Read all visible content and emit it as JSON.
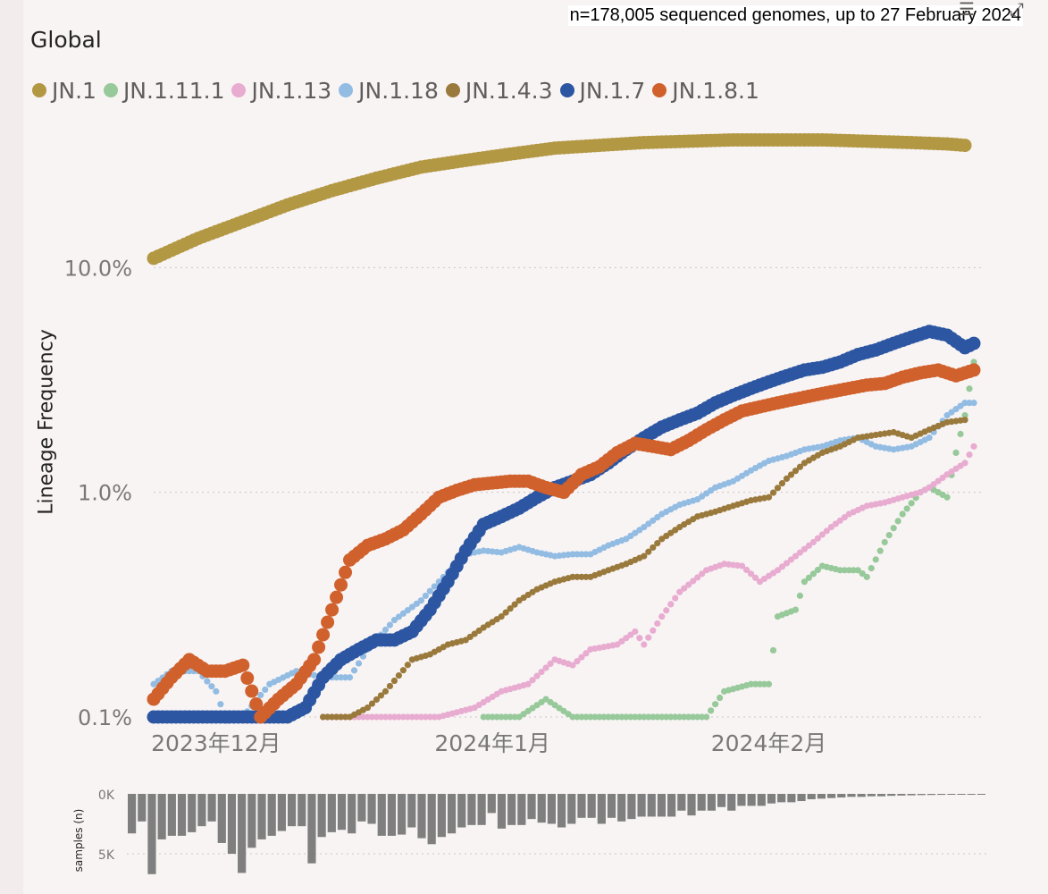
{
  "subtitle": "n=178,005 sequenced genomes, up to 27 February 2024",
  "title": "Global",
  "icons": [
    "filter-icon",
    "expand-icon"
  ],
  "chart_data": [
    {
      "type": "scatter",
      "title": "Global",
      "ylabel": "Lineage Frequency",
      "yscale": "log",
      "ylim": [
        0.1,
        40
      ],
      "yticks": [
        "10.0%",
        "1.0%",
        "0.1%"
      ],
      "ytick_values": [
        10,
        1,
        0.1
      ],
      "xticks": [
        "2023年12月",
        "2024年1月",
        "2024年2月"
      ],
      "xtick_days": [
        0,
        31,
        62
      ],
      "xlim_days": [
        -7,
        85
      ],
      "grid": true,
      "legend_position": "top-left",
      "series": [
        {
          "name": "JN.1",
          "color": "#b39844",
          "size": "large",
          "points": [
            [
              -7,
              11
            ],
            [
              -2,
              13.5
            ],
            [
              3,
              16
            ],
            [
              8,
              19
            ],
            [
              13,
              22
            ],
            [
              18,
              25
            ],
            [
              23,
              28
            ],
            [
              28,
              30
            ],
            [
              33,
              32
            ],
            [
              38,
              34
            ],
            [
              43,
              35
            ],
            [
              48,
              36
            ],
            [
              53,
              36.5
            ],
            [
              58,
              37
            ],
            [
              63,
              37
            ],
            [
              68,
              37
            ],
            [
              73,
              36.5
            ],
            [
              78,
              36
            ],
            [
              82,
              35.5
            ],
            [
              84,
              35
            ]
          ]
        },
        {
          "name": "JN.1.11.1",
          "color": "#97c99a",
          "size": "small",
          "points": [
            [
              30,
              0.1
            ],
            [
              34,
              0.1
            ],
            [
              37,
              0.12
            ],
            [
              40,
              0.1
            ],
            [
              45,
              0.1
            ],
            [
              50,
              0.1
            ],
            [
              55,
              0.1
            ],
            [
              57,
              0.13
            ],
            [
              60,
              0.14
            ],
            [
              62,
              0.14
            ],
            [
              63,
              0.28
            ],
            [
              65,
              0.3
            ],
            [
              66,
              0.4
            ],
            [
              68,
              0.47
            ],
            [
              70,
              0.45
            ],
            [
              72,
              0.45
            ],
            [
              73,
              0.42
            ],
            [
              75,
              0.6
            ],
            [
              77,
              0.8
            ],
            [
              79,
              1.0
            ],
            [
              80,
              1.05
            ],
            [
              81,
              1.0
            ],
            [
              82,
              0.95
            ],
            [
              83,
              1.5
            ],
            [
              84,
              2.2
            ],
            [
              85,
              3.8
            ]
          ]
        },
        {
          "name": "JN.1.13",
          "color": "#e8acd0",
          "size": "small",
          "points": [
            [
              12,
              0.1
            ],
            [
              20,
              0.1
            ],
            [
              25,
              0.1
            ],
            [
              29,
              0.11
            ],
            [
              32,
              0.13
            ],
            [
              35,
              0.14
            ],
            [
              38,
              0.18
            ],
            [
              40,
              0.17
            ],
            [
              42,
              0.2
            ],
            [
              45,
              0.21
            ],
            [
              47,
              0.24
            ],
            [
              48,
              0.21
            ],
            [
              50,
              0.28
            ],
            [
              52,
              0.36
            ],
            [
              55,
              0.45
            ],
            [
              57,
              0.48
            ],
            [
              59,
              0.47
            ],
            [
              61,
              0.4
            ],
            [
              63,
              0.45
            ],
            [
              65,
              0.52
            ],
            [
              67,
              0.6
            ],
            [
              69,
              0.7
            ],
            [
              71,
              0.8
            ],
            [
              73,
              0.87
            ],
            [
              75,
              0.9
            ],
            [
              77,
              0.95
            ],
            [
              79,
              1.0
            ],
            [
              80,
              1.05
            ],
            [
              82,
              1.2
            ],
            [
              84,
              1.35
            ],
            [
              85,
              1.6
            ]
          ]
        },
        {
          "name": "JN.1.18",
          "color": "#93bce3",
          "size": "small",
          "points": [
            [
              -7,
              0.14
            ],
            [
              -5,
              0.16
            ],
            [
              -2,
              0.16
            ],
            [
              0,
              0.13
            ],
            [
              1,
              0.1
            ],
            [
              3,
              0.1
            ],
            [
              6,
              0.14
            ],
            [
              9,
              0.16
            ],
            [
              12,
              0.15
            ],
            [
              15,
              0.15
            ],
            [
              17,
              0.2
            ],
            [
              20,
              0.27
            ],
            [
              23,
              0.33
            ],
            [
              26,
              0.44
            ],
            [
              28,
              0.53
            ],
            [
              30,
              0.55
            ],
            [
              32,
              0.54
            ],
            [
              34,
              0.57
            ],
            [
              36,
              0.54
            ],
            [
              38,
              0.52
            ],
            [
              40,
              0.53
            ],
            [
              42,
              0.53
            ],
            [
              44,
              0.58
            ],
            [
              46,
              0.62
            ],
            [
              48,
              0.7
            ],
            [
              50,
              0.8
            ],
            [
              52,
              0.88
            ],
            [
              54,
              0.93
            ],
            [
              56,
              1.05
            ],
            [
              58,
              1.12
            ],
            [
              60,
              1.25
            ],
            [
              62,
              1.38
            ],
            [
              64,
              1.45
            ],
            [
              66,
              1.55
            ],
            [
              68,
              1.6
            ],
            [
              70,
              1.7
            ],
            [
              72,
              1.75
            ],
            [
              74,
              1.6
            ],
            [
              76,
              1.55
            ],
            [
              78,
              1.6
            ],
            [
              80,
              1.75
            ],
            [
              82,
              2.2
            ],
            [
              84,
              2.5
            ],
            [
              85,
              2.5
            ]
          ]
        },
        {
          "name": "JN.1.4.3",
          "color": "#9a7a3c",
          "size": "small",
          "points": [
            [
              12,
              0.1
            ],
            [
              15,
              0.1
            ],
            [
              17,
              0.11
            ],
            [
              19,
              0.13
            ],
            [
              22,
              0.18
            ],
            [
              24,
              0.19
            ],
            [
              26,
              0.21
            ],
            [
              28,
              0.22
            ],
            [
              30,
              0.25
            ],
            [
              32,
              0.28
            ],
            [
              34,
              0.33
            ],
            [
              36,
              0.37
            ],
            [
              38,
              0.4
            ],
            [
              40,
              0.42
            ],
            [
              42,
              0.42
            ],
            [
              44,
              0.45
            ],
            [
              46,
              0.48
            ],
            [
              48,
              0.52
            ],
            [
              50,
              0.62
            ],
            [
              52,
              0.7
            ],
            [
              54,
              0.78
            ],
            [
              56,
              0.82
            ],
            [
              58,
              0.87
            ],
            [
              60,
              0.92
            ],
            [
              62,
              0.95
            ],
            [
              64,
              1.15
            ],
            [
              66,
              1.35
            ],
            [
              68,
              1.5
            ],
            [
              70,
              1.6
            ],
            [
              72,
              1.75
            ],
            [
              74,
              1.8
            ],
            [
              76,
              1.85
            ],
            [
              78,
              1.75
            ],
            [
              80,
              1.9
            ],
            [
              82,
              2.05
            ],
            [
              84,
              2.1
            ]
          ]
        },
        {
          "name": "JN.1.7",
          "color": "#2c56a2",
          "size": "large",
          "points": [
            [
              -7,
              0.1
            ],
            [
              0,
              0.1
            ],
            [
              5,
              0.1
            ],
            [
              8,
              0.1
            ],
            [
              10,
              0.11
            ],
            [
              12,
              0.15
            ],
            [
              14,
              0.18
            ],
            [
              16,
              0.2
            ],
            [
              18,
              0.22
            ],
            [
              20,
              0.22
            ],
            [
              22,
              0.24
            ],
            [
              24,
              0.3
            ],
            [
              26,
              0.4
            ],
            [
              28,
              0.55
            ],
            [
              30,
              0.72
            ],
            [
              32,
              0.78
            ],
            [
              34,
              0.85
            ],
            [
              36,
              0.95
            ],
            [
              38,
              1.05
            ],
            [
              40,
              1.12
            ],
            [
              42,
              1.2
            ],
            [
              44,
              1.35
            ],
            [
              46,
              1.55
            ],
            [
              48,
              1.75
            ],
            [
              50,
              1.95
            ],
            [
              52,
              2.1
            ],
            [
              54,
              2.25
            ],
            [
              56,
              2.5
            ],
            [
              58,
              2.7
            ],
            [
              60,
              2.9
            ],
            [
              62,
              3.1
            ],
            [
              64,
              3.3
            ],
            [
              66,
              3.5
            ],
            [
              68,
              3.6
            ],
            [
              70,
              3.8
            ],
            [
              72,
              4.1
            ],
            [
              74,
              4.3
            ],
            [
              76,
              4.6
            ],
            [
              78,
              4.9
            ],
            [
              80,
              5.2
            ],
            [
              82,
              5.0
            ],
            [
              84,
              4.4
            ],
            [
              85,
              4.6
            ]
          ]
        },
        {
          "name": "JN.1.8.1",
          "color": "#d0612d",
          "size": "large",
          "points": [
            [
              -7,
              0.12
            ],
            [
              -5,
              0.15
            ],
            [
              -3,
              0.18
            ],
            [
              -1,
              0.16
            ],
            [
              1,
              0.16
            ],
            [
              3,
              0.17
            ],
            [
              5,
              0.1
            ],
            [
              7,
              0.12
            ],
            [
              9,
              0.14
            ],
            [
              11,
              0.18
            ],
            [
              13,
              0.3
            ],
            [
              15,
              0.5
            ],
            [
              17,
              0.58
            ],
            [
              19,
              0.62
            ],
            [
              21,
              0.68
            ],
            [
              23,
              0.8
            ],
            [
              25,
              0.95
            ],
            [
              27,
              1.02
            ],
            [
              29,
              1.08
            ],
            [
              31,
              1.1
            ],
            [
              33,
              1.12
            ],
            [
              35,
              1.12
            ],
            [
              37,
              1.05
            ],
            [
              39,
              1.0
            ],
            [
              41,
              1.2
            ],
            [
              43,
              1.3
            ],
            [
              45,
              1.5
            ],
            [
              47,
              1.65
            ],
            [
              49,
              1.6
            ],
            [
              51,
              1.55
            ],
            [
              53,
              1.7
            ],
            [
              55,
              1.9
            ],
            [
              57,
              2.1
            ],
            [
              59,
              2.3
            ],
            [
              61,
              2.4
            ],
            [
              63,
              2.5
            ],
            [
              65,
              2.6
            ],
            [
              67,
              2.7
            ],
            [
              69,
              2.8
            ],
            [
              71,
              2.9
            ],
            [
              73,
              3.0
            ],
            [
              75,
              3.05
            ],
            [
              77,
              3.25
            ],
            [
              79,
              3.4
            ],
            [
              81,
              3.5
            ],
            [
              83,
              3.3
            ],
            [
              85,
              3.5
            ]
          ]
        }
      ]
    },
    {
      "type": "bar",
      "ylabel": "samples (n)",
      "yticks": [
        "0K",
        "5K"
      ],
      "ytick_values": [
        0,
        5000
      ],
      "ylim": [
        0,
        7000
      ],
      "values": [
        3300,
        2300,
        6700,
        3800,
        3500,
        3500,
        3200,
        2700,
        2300,
        4100,
        5000,
        6600,
        4500,
        3800,
        3500,
        3100,
        2700,
        2700,
        5800,
        3600,
        3200,
        3000,
        3300,
        2300,
        2500,
        3500,
        3500,
        3400,
        2800,
        3700,
        4200,
        3600,
        3300,
        2800,
        2600,
        2600,
        1600,
        2900,
        2600,
        2600,
        2100,
        2400,
        2500,
        2800,
        2500,
        2000,
        2000,
        2500,
        2000,
        2300,
        2100,
        1900,
        1900,
        1900,
        1900,
        1400,
        1800,
        1400,
        1400,
        1100,
        1400,
        1000,
        1000,
        1000,
        800,
        700,
        700,
        600,
        450,
        400,
        350,
        300,
        250,
        250,
        200,
        200,
        160,
        140,
        120,
        100,
        90,
        80,
        60,
        50,
        40,
        30
      ]
    }
  ]
}
